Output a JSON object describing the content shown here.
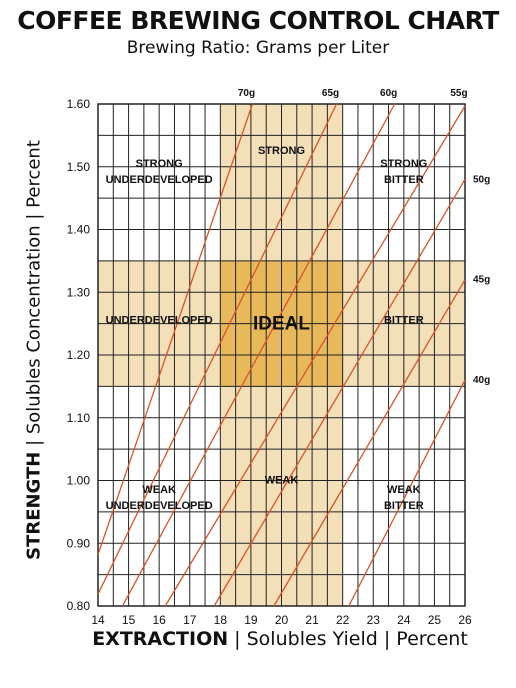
{
  "title": "COFFEE BREWING CONTROL CHART",
  "subtitle": "Brewing Ratio: Grams per Liter",
  "y_title_strong": "STRENGTH",
  "y_title_rest": " | Solubles Concentration | Percent",
  "x_title_strong": "EXTRACTION",
  "x_title_rest": " | Solubles Yield | Percent",
  "colors": {
    "grid": "#222222",
    "zone_band": "#f3dfb8",
    "ideal": "#e8b95a",
    "ratio_line": "#d9532b"
  },
  "chart_data": {
    "type": "line",
    "xlim": [
      14,
      26
    ],
    "ylim": [
      0.8,
      1.6
    ],
    "x_ticks": [
      "14",
      "15",
      "16",
      "17",
      "18",
      "19",
      "20",
      "21",
      "22",
      "23",
      "24",
      "25",
      "26"
    ],
    "y_ticks": [
      "0.80",
      "0.90",
      "1.00",
      "1.10",
      "1.20",
      "1.30",
      "1.40",
      "1.50",
      "1.60"
    ],
    "x_minor_step": 0.5,
    "y_minor_step": 0.05,
    "grid": true,
    "ideal_extraction": [
      18,
      22
    ],
    "ideal_strength": [
      1.15,
      1.35
    ],
    "series": [
      {
        "name": "70g",
        "slope": 0.063,
        "x": [
          14,
          19.05
        ],
        "y": [
          0.882,
          1.6
        ]
      },
      {
        "name": "65g",
        "slope": 0.0585,
        "x": [
          14,
          21.8
        ],
        "y": [
          0.819,
          1.6
        ]
      },
      {
        "name": "60g",
        "slope": 0.054,
        "x": [
          14.8,
          23.7
        ],
        "y": [
          0.8,
          1.6
        ]
      },
      {
        "name": "55g",
        "slope": 0.0495,
        "x": [
          16.2,
          26
        ],
        "y": [
          0.8,
          1.597
        ]
      },
      {
        "name": "50g",
        "slope": 0.045,
        "x": [
          17.8,
          26
        ],
        "y": [
          0.8,
          1.48
        ]
      },
      {
        "name": "45g",
        "slope": 0.0405,
        "x": [
          19.75,
          26
        ],
        "y": [
          0.8,
          1.32
        ]
      },
      {
        "name": "40g",
        "slope": 0.036,
        "x": [
          22.2,
          26
        ],
        "y": [
          0.8,
          1.16
        ]
      }
    ],
    "zones": [
      {
        "lines": [
          "STRONG",
          "UNDERDEVELOPED"
        ],
        "x": 16,
        "y": 1.5
      },
      {
        "lines": [
          "STRONG"
        ],
        "x": 20,
        "y": 1.52
      },
      {
        "lines": [
          "STRONG",
          "BITTER"
        ],
        "x": 24,
        "y": 1.5
      },
      {
        "lines": [
          "UNDERDEVELOPED"
        ],
        "x": 16,
        "y": 1.25
      },
      {
        "lines": [
          "IDEAL"
        ],
        "x": 20,
        "y": 1.25,
        "big": true
      },
      {
        "lines": [
          "BITTER"
        ],
        "x": 24,
        "y": 1.25
      },
      {
        "lines": [
          "WEAK",
          "UNDERDEVELOPED"
        ],
        "x": 16,
        "y": 0.98
      },
      {
        "lines": [
          "WEAK"
        ],
        "x": 20,
        "y": 0.995
      },
      {
        "lines": [
          "WEAK",
          "BITTER"
        ],
        "x": 24,
        "y": 0.98
      }
    ]
  }
}
